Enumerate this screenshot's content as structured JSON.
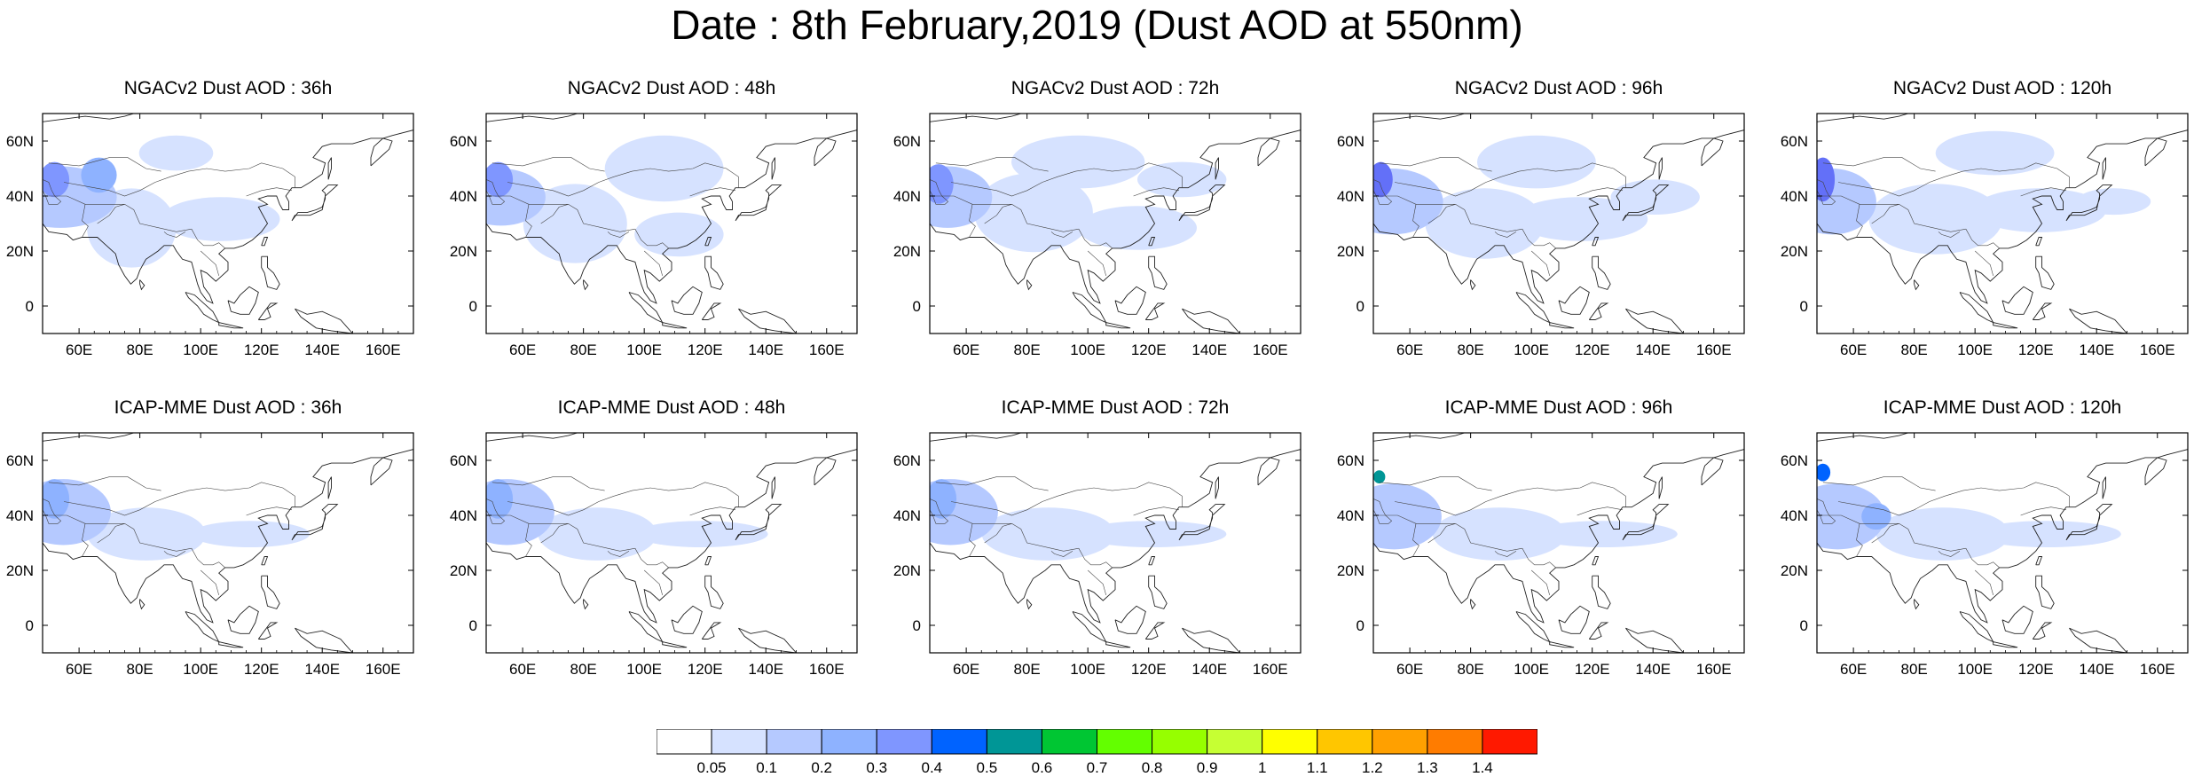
{
  "title": "Date : 8th February,2019 (Dust AOD at 550nm)",
  "panels": [
    {
      "title": "NGACv2 Dust AOD : 36h",
      "model": "NGACv2",
      "lead": "36h",
      "plumes": [
        {
          "cx": 12,
          "cy": 38,
          "rx": 38,
          "ry": 14,
          "level": 2
        },
        {
          "cx": 8,
          "cy": 30,
          "rx": 10,
          "ry": 8,
          "level": 4
        },
        {
          "cx": 60,
          "cy": 52,
          "rx": 30,
          "ry": 18,
          "level": 1
        },
        {
          "cx": 120,
          "cy": 48,
          "rx": 40,
          "ry": 10,
          "level": 1
        },
        {
          "cx": 90,
          "cy": 18,
          "rx": 25,
          "ry": 8,
          "level": 1
        },
        {
          "cx": 38,
          "cy": 28,
          "rx": 12,
          "ry": 8,
          "level": 3
        }
      ]
    },
    {
      "title": "NGACv2 Dust AOD : 48h",
      "model": "NGACv2",
      "lead": "48h",
      "plumes": [
        {
          "cx": 10,
          "cy": 38,
          "rx": 30,
          "ry": 13,
          "level": 2
        },
        {
          "cx": 8,
          "cy": 30,
          "rx": 10,
          "ry": 8,
          "level": 4
        },
        {
          "cx": 60,
          "cy": 50,
          "rx": 35,
          "ry": 18,
          "level": 1
        },
        {
          "cx": 130,
          "cy": 55,
          "rx": 30,
          "ry": 10,
          "level": 1
        },
        {
          "cx": 120,
          "cy": 25,
          "rx": 40,
          "ry": 15,
          "level": 1
        }
      ]
    },
    {
      "title": "NGACv2 Dust AOD : 72h",
      "model": "NGACv2",
      "lead": "72h",
      "plumes": [
        {
          "cx": 12,
          "cy": 38,
          "rx": 30,
          "ry": 14,
          "level": 2
        },
        {
          "cx": 6,
          "cy": 32,
          "rx": 10,
          "ry": 9,
          "level": 4
        },
        {
          "cx": 70,
          "cy": 45,
          "rx": 40,
          "ry": 18,
          "level": 1
        },
        {
          "cx": 140,
          "cy": 52,
          "rx": 40,
          "ry": 10,
          "level": 1
        },
        {
          "cx": 100,
          "cy": 22,
          "rx": 45,
          "ry": 12,
          "level": 1
        },
        {
          "cx": 170,
          "cy": 30,
          "rx": 30,
          "ry": 8,
          "level": 1
        }
      ]
    },
    {
      "title": "NGACv2 Dust AOD : 96h",
      "model": "NGACv2",
      "lead": "96h",
      "plumes": [
        {
          "cx": 12,
          "cy": 40,
          "rx": 35,
          "ry": 15,
          "level": 2
        },
        {
          "cx": 5,
          "cy": 30,
          "rx": 8,
          "ry": 8,
          "level": 5
        },
        {
          "cx": 75,
          "cy": 50,
          "rx": 40,
          "ry": 16,
          "level": 1
        },
        {
          "cx": 140,
          "cy": 48,
          "rx": 45,
          "ry": 10,
          "level": 1
        },
        {
          "cx": 110,
          "cy": 22,
          "rx": 40,
          "ry": 12,
          "level": 1
        },
        {
          "cx": 190,
          "cy": 38,
          "rx": 30,
          "ry": 8,
          "level": 1
        }
      ]
    },
    {
      "title": "NGACv2 Dust AOD : 120h",
      "model": "NGACv2",
      "lead": "120h",
      "plumes": [
        {
          "cx": 10,
          "cy": 40,
          "rx": 30,
          "ry": 15,
          "level": 2
        },
        {
          "cx": 4,
          "cy": 30,
          "rx": 8,
          "ry": 10,
          "level": 5
        },
        {
          "cx": 80,
          "cy": 48,
          "rx": 45,
          "ry": 16,
          "level": 1
        },
        {
          "cx": 150,
          "cy": 44,
          "rx": 45,
          "ry": 10,
          "level": 1
        },
        {
          "cx": 120,
          "cy": 18,
          "rx": 40,
          "ry": 10,
          "level": 1
        },
        {
          "cx": 200,
          "cy": 40,
          "rx": 25,
          "ry": 6,
          "level": 1
        }
      ]
    },
    {
      "title": "ICAP-MME Dust AOD : 36h",
      "model": "ICAP-MME",
      "lead": "36h",
      "plumes": [
        {
          "cx": 14,
          "cy": 36,
          "rx": 32,
          "ry": 15,
          "level": 2
        },
        {
          "cx": 8,
          "cy": 30,
          "rx": 10,
          "ry": 9,
          "level": 3
        },
        {
          "cx": 70,
          "cy": 46,
          "rx": 40,
          "ry": 12,
          "level": 1
        },
        {
          "cx": 140,
          "cy": 46,
          "rx": 40,
          "ry": 6,
          "level": 1
        }
      ]
    },
    {
      "title": "ICAP-MME Dust AOD : 48h",
      "model": "ICAP-MME",
      "lead": "48h",
      "plumes": [
        {
          "cx": 14,
          "cy": 36,
          "rx": 32,
          "ry": 15,
          "level": 2
        },
        {
          "cx": 8,
          "cy": 30,
          "rx": 10,
          "ry": 9,
          "level": 3
        },
        {
          "cx": 75,
          "cy": 46,
          "rx": 40,
          "ry": 12,
          "level": 1
        },
        {
          "cx": 145,
          "cy": 46,
          "rx": 45,
          "ry": 6,
          "level": 1
        }
      ]
    },
    {
      "title": "ICAP-MME Dust AOD : 72h",
      "model": "ICAP-MME",
      "lead": "72h",
      "plumes": [
        {
          "cx": 14,
          "cy": 36,
          "rx": 32,
          "ry": 15,
          "level": 2
        },
        {
          "cx": 8,
          "cy": 30,
          "rx": 10,
          "ry": 9,
          "level": 3
        },
        {
          "cx": 80,
          "cy": 46,
          "rx": 45,
          "ry": 12,
          "level": 1
        },
        {
          "cx": 150,
          "cy": 46,
          "rx": 50,
          "ry": 6,
          "level": 1
        }
      ]
    },
    {
      "title": "ICAP-MME Dust AOD : 96h",
      "model": "ICAP-MME",
      "lead": "96h",
      "plumes": [
        {
          "cx": 14,
          "cy": 38,
          "rx": 32,
          "ry": 15,
          "level": 2
        },
        {
          "cx": 4,
          "cy": 20,
          "rx": 4,
          "ry": 3,
          "level": 7
        },
        {
          "cx": 85,
          "cy": 46,
          "rx": 45,
          "ry": 12,
          "level": 1
        },
        {
          "cx": 155,
          "cy": 46,
          "rx": 50,
          "ry": 6,
          "level": 1
        }
      ]
    },
    {
      "title": "ICAP-MME Dust AOD : 120h",
      "model": "ICAP-MME",
      "lead": "120h",
      "plumes": [
        {
          "cx": 14,
          "cy": 38,
          "rx": 32,
          "ry": 15,
          "level": 2
        },
        {
          "cx": 4,
          "cy": 18,
          "rx": 5,
          "ry": 4,
          "level": 6
        },
        {
          "cx": 85,
          "cy": 46,
          "rx": 45,
          "ry": 12,
          "level": 1
        },
        {
          "cx": 155,
          "cy": 46,
          "rx": 50,
          "ry": 6,
          "level": 1
        },
        {
          "cx": 40,
          "cy": 38,
          "rx": 10,
          "ry": 6,
          "level": 3
        }
      ]
    }
  ],
  "lon_labels": [
    "60E",
    "80E",
    "100E",
    "120E",
    "140E",
    "160E"
  ],
  "lat_labels": [
    "60N",
    "40N",
    "20N",
    "0"
  ],
  "colorbar": {
    "labels": [
      "0.05",
      "0.1",
      "0.2",
      "0.3",
      "0.4",
      "0.5",
      "0.6",
      "0.7",
      "0.8",
      "0.9",
      "1",
      "1.1",
      "1.2",
      "1.3",
      "1.4"
    ],
    "colors": [
      "#ffffff",
      "#d6e2ff",
      "#b5c9ff",
      "#8eb2ff",
      "#7f96ff",
      "#6370f8",
      "#0063ff",
      "#009696",
      "#00c633",
      "#63ff00",
      "#96ff00",
      "#c6ff33",
      "#ffff00",
      "#ffc600",
      "#ffa000",
      "#ff7c00",
      "#ff1900"
    ]
  }
}
